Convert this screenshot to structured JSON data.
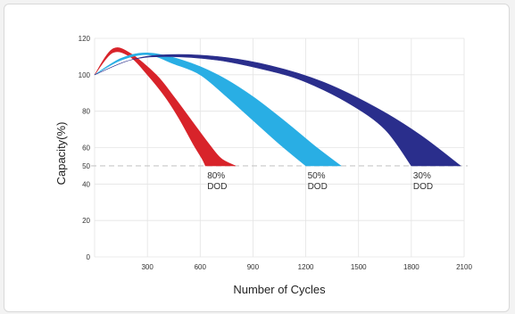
{
  "chart_data": {
    "type": "area",
    "xlabel": "Number of Cycles",
    "ylabel": "Capacity(%)",
    "xlim": [
      0,
      2100
    ],
    "ylim": [
      0,
      120
    ],
    "x_ticks": [
      0,
      300,
      600,
      900,
      1200,
      1500,
      1800,
      2100
    ],
    "y_ticks": [
      0,
      20,
      40,
      50,
      60,
      80,
      100,
      120
    ],
    "reference_line": {
      "y": 50,
      "style": "dashed"
    },
    "grid": true,
    "series": [
      {
        "label_lines": [
          "80%",
          "DOD"
        ],
        "color": "#d8232a",
        "upper": [
          [
            0,
            100
          ],
          [
            100,
            114
          ],
          [
            200,
            112
          ],
          [
            350,
            100
          ],
          [
            450,
            88
          ],
          [
            550,
            75
          ],
          [
            650,
            62
          ],
          [
            720,
            54
          ],
          [
            800,
            50
          ]
        ],
        "lower": [
          [
            0,
            100
          ],
          [
            100,
            112
          ],
          [
            200,
            110
          ],
          [
            300,
            100
          ],
          [
            400,
            88
          ],
          [
            480,
            76
          ],
          [
            560,
            62
          ],
          [
            610,
            54
          ],
          [
            630,
            50
          ]
        ]
      },
      {
        "label_lines": [
          "50%",
          "DOD"
        ],
        "color": "#29aee4",
        "upper": [
          [
            0,
            100
          ],
          [
            150,
            109
          ],
          [
            300,
            112
          ],
          [
            500,
            108
          ],
          [
            700,
            100
          ],
          [
            900,
            88
          ],
          [
            1100,
            73
          ],
          [
            1250,
            61
          ],
          [
            1400,
            50
          ]
        ],
        "lower": [
          [
            0,
            100
          ],
          [
            150,
            108
          ],
          [
            300,
            111
          ],
          [
            450,
            106
          ],
          [
            600,
            100
          ],
          [
            750,
            88
          ],
          [
            900,
            75
          ],
          [
            1050,
            62
          ],
          [
            1200,
            50
          ]
        ]
      },
      {
        "label_lines": [
          "30%",
          "DOD"
        ],
        "color": "#2a2e8c",
        "upper": [
          [
            0,
            100
          ],
          [
            200,
            108
          ],
          [
            400,
            111
          ],
          [
            700,
            110
          ],
          [
            1000,
            105
          ],
          [
            1300,
            96
          ],
          [
            1600,
            82
          ],
          [
            1850,
            67
          ],
          [
            2080,
            50
          ]
        ],
        "lower": [
          [
            0,
            100
          ],
          [
            200,
            108
          ],
          [
            400,
            110
          ],
          [
            700,
            108
          ],
          [
            1000,
            102
          ],
          [
            1200,
            96
          ],
          [
            1450,
            84
          ],
          [
            1650,
            70
          ],
          [
            1800,
            50
          ]
        ]
      }
    ]
  }
}
